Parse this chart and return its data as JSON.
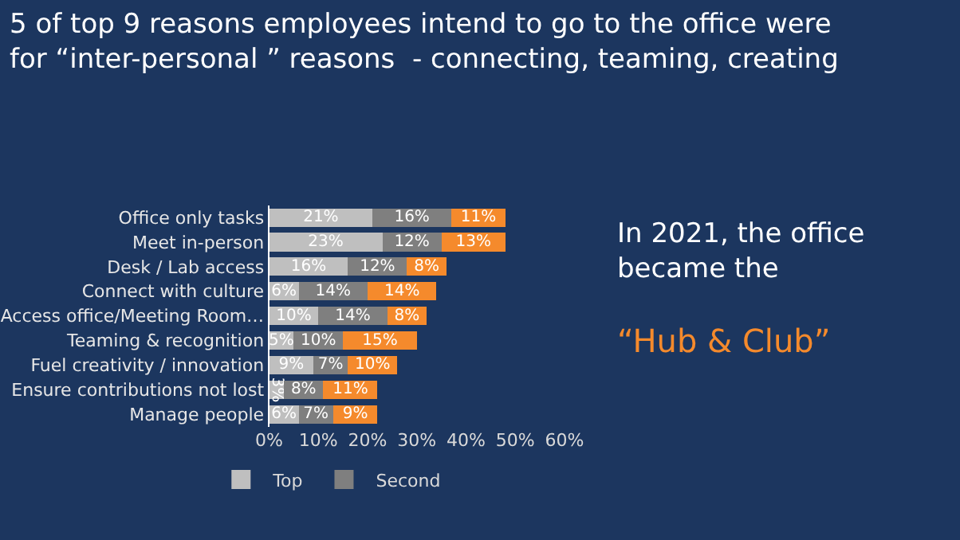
{
  "chart_data": {
    "type": "bar",
    "orientation": "horizontal",
    "stacked": true,
    "title": "5 of top 9 reasons employees intend to go to the office were\nfor “inter-personal ” reasons  - connecting, teaming, creating",
    "categories": [
      "Office only tasks",
      "Meet in-person",
      "Desk / Lab access",
      "Connect with culture",
      "Access office/Meeting Room…",
      "Teaming & recognition",
      "Fuel creativity / innovation",
      "Ensure contributions not lost",
      "Manage people"
    ],
    "series": [
      {
        "name": "Top",
        "color": "#bfbfbf",
        "values": [
          21,
          23,
          16,
          6,
          10,
          5,
          9,
          3,
          6
        ],
        "value_labels": [
          "21%",
          "23%",
          "16%",
          "6%",
          "10%",
          "5%",
          "9%",
          "3%",
          "6%"
        ]
      },
      {
        "name": "Second",
        "color": "#7f7f7f",
        "values": [
          16,
          12,
          12,
          14,
          14,
          10,
          7,
          8,
          7
        ],
        "value_labels": [
          "16%",
          "12%",
          "12%",
          "14%",
          "14%",
          "10%",
          "7%",
          "8%",
          "7%"
        ]
      },
      {
        "color": "#f58a2c",
        "values": [
          11,
          13,
          8,
          14,
          8,
          15,
          10,
          11,
          9
        ],
        "value_labels": [
          "11%",
          "13%",
          "8%",
          "14%",
          "8%",
          "15%",
          "10%",
          "11%",
          "9%"
        ]
      }
    ],
    "xlim": [
      0,
      60
    ],
    "xticks": [
      {
        "value": 0,
        "label": "0%"
      },
      {
        "value": 10,
        "label": "10%"
      },
      {
        "value": 20,
        "label": "20%"
      },
      {
        "value": 30,
        "label": "30%"
      },
      {
        "value": 40,
        "label": "40%"
      },
      {
        "value": 50,
        "label": "50%"
      },
      {
        "value": 60,
        "label": "60%"
      }
    ],
    "grid": false,
    "legend": "bottom",
    "annotations": [
      "In 2021, the office\nbecame the",
      "“Hub & Club”"
    ]
  }
}
